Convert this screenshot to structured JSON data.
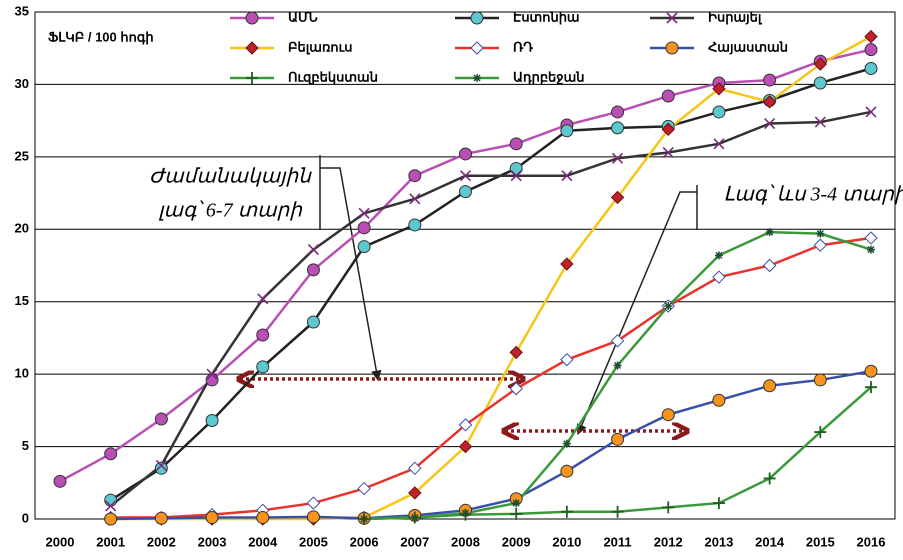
{
  "chart_data": {
    "type": "line",
    "annotations": [
      "ՖԼԿԲ / 100 հոգի",
      "Ժամանակային",
      "լագ՝ 6-7 տարի",
      "Լագ՝ ևս 3-4 տարի"
    ],
    "categories": [
      "2000",
      "2001",
      "2002",
      "2003",
      "2004",
      "2005",
      "2006",
      "2007",
      "2008",
      "2009",
      "2010",
      "2011",
      "2012",
      "2013",
      "2014",
      "2015",
      "2016"
    ],
    "ylim": [
      0,
      35
    ],
    "yticks": [
      0,
      5,
      10,
      15,
      20,
      25,
      30,
      35
    ],
    "grid": true,
    "series": [
      {
        "name": "ԱՄՆ",
        "color": "#b94fb5",
        "marker": "circle",
        "marker_color": "#b94fb5",
        "values": [
          2.6,
          4.5,
          6.9,
          9.6,
          12.7,
          17.2,
          20.1,
          23.7,
          25.2,
          25.9,
          27.2,
          28.1,
          29.2,
          30.1,
          30.3,
          31.6,
          32.4
        ]
      },
      {
        "name": "Էստոնիա",
        "color": "#222222",
        "marker": "circle",
        "marker_color": "#5cc8d0",
        "values": [
          null,
          1.3,
          3.5,
          6.8,
          10.5,
          13.6,
          18.8,
          20.3,
          22.6,
          24.2,
          26.8,
          27.0,
          27.1,
          28.1,
          28.9,
          30.1,
          31.1
        ]
      },
      {
        "name": "Իսրայել",
        "color": "#333333",
        "marker": "x",
        "marker_color": "#7a2a7a",
        "values": [
          null,
          0.9,
          3.7,
          10.0,
          15.2,
          18.6,
          21.1,
          22.1,
          23.7,
          23.7,
          23.7,
          24.9,
          25.3,
          25.9,
          27.3,
          27.4,
          28.1
        ]
      },
      {
        "name": "Բելառուս",
        "color": "#f5c518",
        "marker": "diamond",
        "marker_color": "#c0202a",
        "values": [
          null,
          0,
          0,
          0,
          0,
          0,
          0.1,
          1.8,
          5.0,
          11.5,
          17.6,
          22.2,
          26.9,
          29.7,
          28.8,
          31.4,
          33.3
        ]
      },
      {
        "name": "ՌԴ",
        "color": "#e8322b",
        "marker": "diamond",
        "marker_color": "#ffffff",
        "values": [
          null,
          0.1,
          0.1,
          0.3,
          0.6,
          1.1,
          2.1,
          3.5,
          6.5,
          9.0,
          11.0,
          12.3,
          14.7,
          16.7,
          17.5,
          18.9,
          19.4
        ]
      },
      {
        "name": "Հայաստան",
        "color": "#3a4fa8",
        "marker": "circle",
        "marker_color": "#f7941d",
        "values": [
          null,
          0,
          0.05,
          0.1,
          0.1,
          0.15,
          0.05,
          0.25,
          0.6,
          1.4,
          3.3,
          5.5,
          7.2,
          8.2,
          9.2,
          9.6,
          10.2
        ]
      },
      {
        "name": "Ուզբեկստան",
        "color": "#3a9a3a",
        "marker": "plus",
        "marker_color": "#1f5f1f",
        "values": [
          null,
          null,
          null,
          null,
          null,
          null,
          0,
          0.1,
          0.3,
          0.35,
          0.5,
          0.5,
          0.8,
          1.1,
          2.8,
          6.0,
          9.1
        ]
      },
      {
        "name": "Ադրբեջան",
        "color": "#3a9a3a",
        "marker": "star",
        "marker_color": "#1f4f2f",
        "values": [
          null,
          null,
          null,
          null,
          null,
          null,
          0,
          0.1,
          0.4,
          1.1,
          5.2,
          10.6,
          14.7,
          18.2,
          19.8,
          19.7,
          18.6
        ]
      }
    ]
  }
}
